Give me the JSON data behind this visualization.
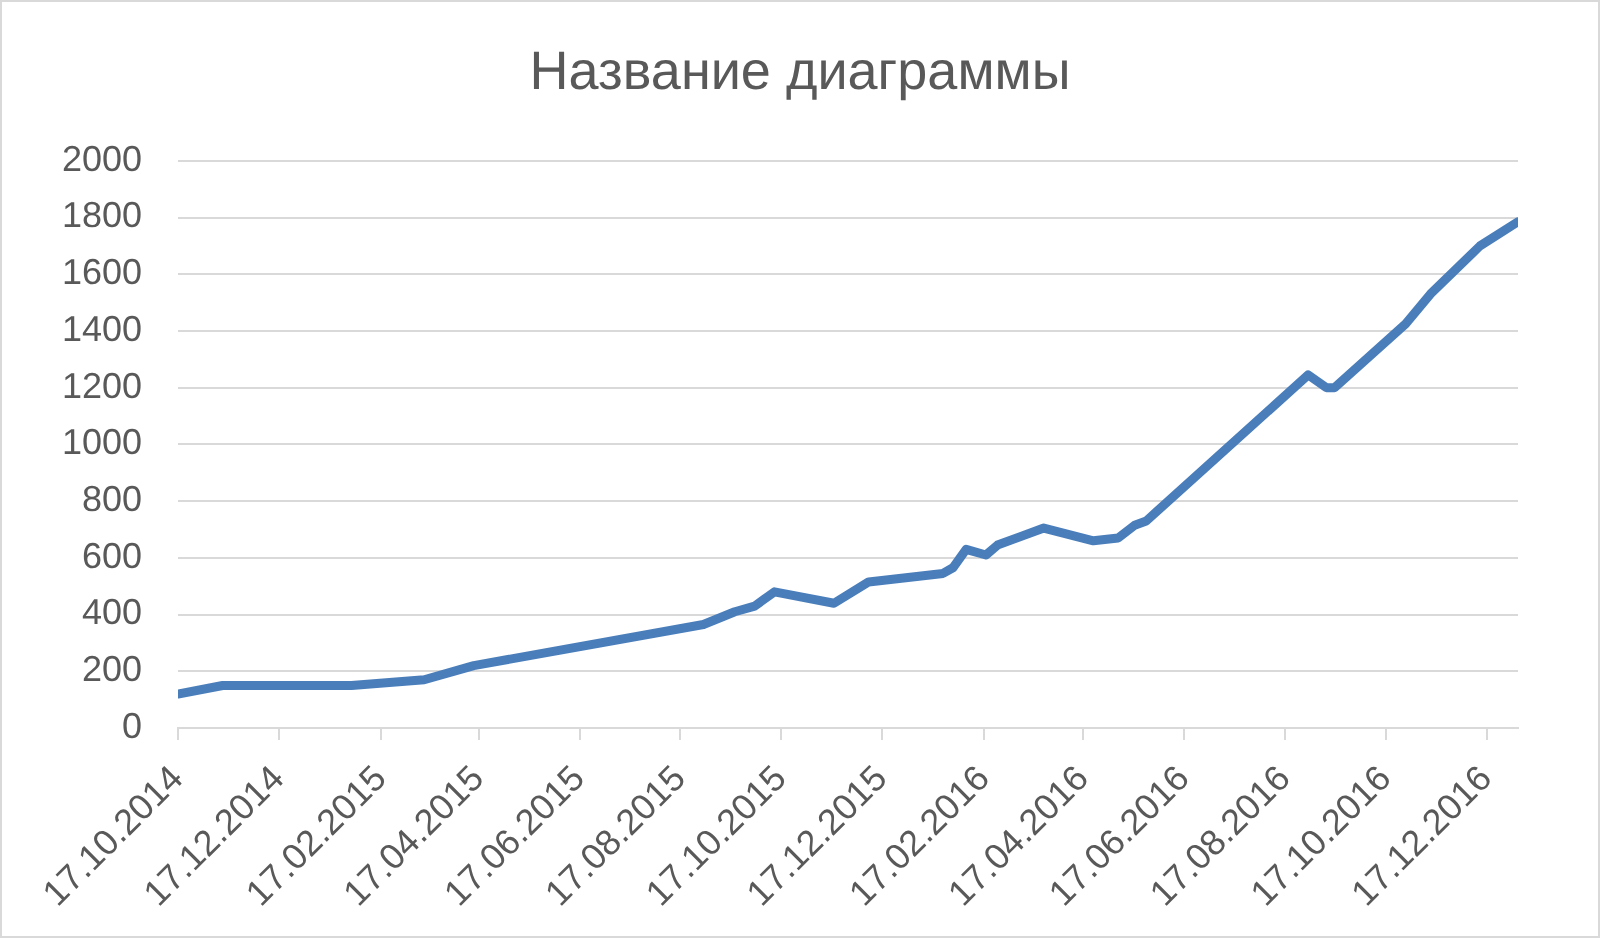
{
  "chart_data": {
    "type": "line",
    "title": "Название диаграммы",
    "x": [
      "2014-10-17",
      "2014-11-13",
      "2015-01-30",
      "2015-03-15",
      "2015-04-14",
      "2015-08-31",
      "2015-09-19",
      "2015-10-01",
      "2015-10-13",
      "2015-11-18",
      "2015-12-09",
      "2016-01-23",
      "2016-01-29",
      "2016-02-06",
      "2016-02-18",
      "2016-02-25",
      "2016-03-24",
      "2016-04-23",
      "2016-05-08",
      "2016-05-18",
      "2016-05-25",
      "2016-08-31",
      "2016-09-11",
      "2016-09-16",
      "2016-10-29",
      "2016-11-13",
      "2016-12-13",
      "2017-01-05"
    ],
    "values": [
      120,
      150,
      150,
      170,
      220,
      365,
      410,
      430,
      480,
      440,
      515,
      545,
      565,
      630,
      610,
      645,
      705,
      660,
      670,
      715,
      730,
      1245,
      1200,
      1200,
      1425,
      1530,
      1700,
      1785
    ],
    "color": "#4a7ebb",
    "xlim": [
      "2014-10-17",
      "2017-01-05"
    ],
    "xticks": [
      {
        "value": "2014-10-17",
        "label": "17.10.2014"
      },
      {
        "value": "2014-12-17",
        "label": "17.12.2014"
      },
      {
        "value": "2015-02-17",
        "label": "17.02.2015"
      },
      {
        "value": "2015-04-17",
        "label": "17.04.2015"
      },
      {
        "value": "2015-06-17",
        "label": "17.06.2015"
      },
      {
        "value": "2015-08-17",
        "label": "17.08.2015"
      },
      {
        "value": "2015-10-17",
        "label": "17.10.2015"
      },
      {
        "value": "2015-12-17",
        "label": "17.12.2015"
      },
      {
        "value": "2016-02-17",
        "label": "17.02.2016"
      },
      {
        "value": "2016-04-17",
        "label": "17.04.2016"
      },
      {
        "value": "2016-06-17",
        "label": "17.06.2016"
      },
      {
        "value": "2016-08-17",
        "label": "17.08.2016"
      },
      {
        "value": "2016-10-17",
        "label": "17.10.2016"
      },
      {
        "value": "2016-12-17",
        "label": "17.12.2016"
      }
    ],
    "ylim": [
      0,
      2000
    ],
    "yticks": [
      0,
      200,
      400,
      600,
      800,
      1000,
      1200,
      1400,
      1600,
      1800,
      2000
    ],
    "grid": "y"
  }
}
